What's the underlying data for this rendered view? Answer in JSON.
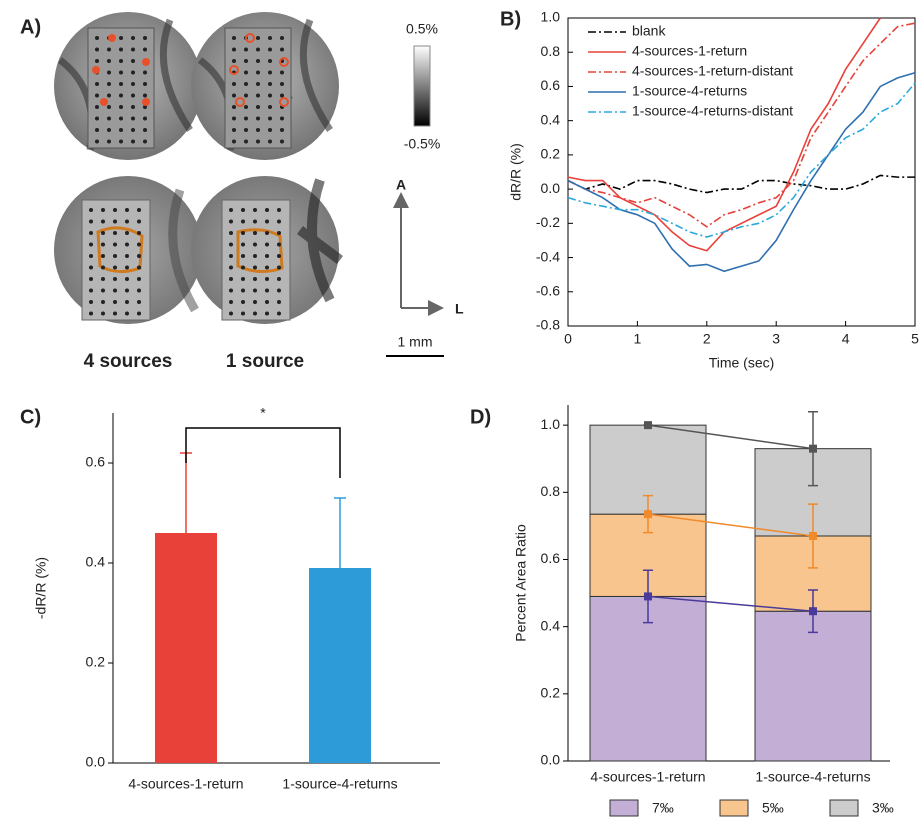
{
  "chart_data": [
    {
      "type": "image",
      "panel_label": "A)",
      "colorbar_max_label": "0.5%",
      "colorbar_min_label": "-0.5%",
      "axis_labels": [
        "A",
        "L"
      ],
      "scale_bar_label": "1 mm",
      "captions": [
        "4 sources",
        "1 source"
      ]
    },
    {
      "type": "line",
      "panel_label": "B)",
      "xlabel": "Time (sec)",
      "ylabel": "dR/R (%)",
      "x": [
        0,
        0.25,
        0.5,
        0.75,
        1,
        1.25,
        1.5,
        1.75,
        2,
        2.25,
        2.5,
        2.75,
        3,
        3.25,
        3.5,
        3.75,
        4,
        4.25,
        4.5,
        4.75,
        5
      ],
      "xlim": [
        0,
        5
      ],
      "xticks": [
        0,
        1,
        2,
        3,
        4,
        5
      ],
      "ylim": [
        -0.8,
        1.0
      ],
      "yticks": [
        -0.8,
        -0.6,
        -0.4,
        -0.2,
        {
          "value": 0,
          "label": "0.0"
        },
        0.2,
        0.4,
        0.6,
        0.8,
        {
          "value": 1,
          "label": "1.0"
        }
      ],
      "series": [
        {
          "name": "blank",
          "color": "#000000",
          "linestyle": "dashdot",
          "values": [
            0.05,
            0.0,
            0.03,
            0.0,
            0.05,
            0.05,
            0.03,
            0.0,
            -0.02,
            0.0,
            0.0,
            0.05,
            0.05,
            0.03,
            0.02,
            0.0,
            0.0,
            0.03,
            0.08,
            0.07,
            0.07
          ]
        },
        {
          "name": "4-sources-1-return",
          "color": "#e8413a",
          "linestyle": "solid",
          "values": [
            0.07,
            0.05,
            0.05,
            -0.05,
            -0.1,
            -0.15,
            -0.25,
            -0.33,
            -0.36,
            -0.25,
            -0.2,
            -0.15,
            -0.1,
            0.1,
            0.35,
            0.5,
            0.7,
            0.85,
            1.0,
            null,
            null
          ]
        },
        {
          "name": "4-sources-1-return-distant",
          "color": "#e8413a",
          "linestyle": "dashdot",
          "values": [
            0.05,
            0.0,
            -0.02,
            -0.05,
            -0.08,
            -0.05,
            -0.1,
            -0.15,
            -0.22,
            -0.15,
            -0.12,
            -0.08,
            -0.05,
            0.05,
            0.3,
            0.45,
            0.6,
            0.75,
            0.85,
            0.95,
            0.97
          ]
        },
        {
          "name": "1-source-4-returns",
          "color": "#2e6fb0",
          "linestyle": "solid",
          "values": [
            0.05,
            0.0,
            -0.05,
            -0.12,
            -0.15,
            -0.2,
            -0.35,
            -0.45,
            -0.44,
            -0.48,
            -0.45,
            -0.42,
            -0.3,
            -0.12,
            0.05,
            0.2,
            0.35,
            0.45,
            0.6,
            0.65,
            0.68
          ]
        },
        {
          "name": "1-source-4-returns-distant",
          "color": "#2ea8dc",
          "linestyle": "dashdot",
          "values": [
            -0.05,
            -0.08,
            -0.1,
            -0.12,
            -0.12,
            -0.15,
            -0.2,
            -0.25,
            -0.28,
            -0.25,
            -0.22,
            -0.2,
            -0.15,
            -0.05,
            0.1,
            0.2,
            0.3,
            0.35,
            0.45,
            0.5,
            0.62
          ]
        }
      ]
    },
    {
      "type": "bar",
      "panel_label": "C)",
      "ylabel": "-dR/R (%)",
      "annotation": "*",
      "categories": [
        "4-sources-1-return",
        "1-source-4-returns"
      ],
      "values": [
        0.46,
        0.39
      ],
      "errors": [
        0.16,
        0.14
      ],
      "colors": [
        "#e8413a",
        "#2e9bd9"
      ],
      "ylim": [
        0,
        0.7
      ],
      "yticks": [
        {
          "value": 0,
          "label": "0.0"
        },
        0.2,
        0.4,
        0.6
      ]
    },
    {
      "type": "stacked_bar",
      "panel_label": "D)",
      "ylabel": "Percent Area Ratio",
      "categories": [
        "4-sources-1-return",
        "1-source-4-returns"
      ],
      "ylim": [
        0,
        1.06
      ],
      "yticks": [
        {
          "value": 0,
          "label": "0.0"
        },
        0.2,
        0.4,
        0.6,
        0.8,
        {
          "value": 1,
          "label": "1.0"
        }
      ],
      "series": [
        {
          "name": "7‰",
          "color": "#c3afd6",
          "marker_color": "#4a3a9a",
          "values": [
            0.49,
            0.446
          ],
          "errors": [
            0.078,
            0.063
          ]
        },
        {
          "name": "5‰",
          "color": "#f7c58d",
          "marker_color": "#f08a2a",
          "values": [
            0.245,
            0.224
          ],
          "errors": [
            0.055,
            0.095
          ]
        },
        {
          "name": "3‰",
          "color": "#cccccc",
          "marker_color": "#555555",
          "values": [
            0.265,
            0.26
          ],
          "errors": [
            0.0,
            0.11
          ]
        }
      ]
    }
  ]
}
